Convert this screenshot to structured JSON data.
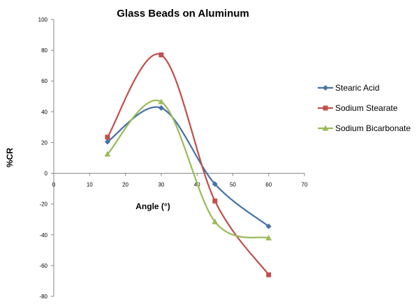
{
  "chart_data": {
    "type": "line",
    "title": "Glass Beads on Aluminum",
    "xlabel": "Angle (°)",
    "ylabel": "%CR",
    "xlim": [
      0,
      70
    ],
    "ylim": [
      -80,
      100
    ],
    "xticks": [
      0,
      10,
      20,
      30,
      40,
      50,
      60,
      70
    ],
    "yticks": [
      -80,
      -60,
      -40,
      -20,
      0,
      20,
      40,
      60,
      80,
      100
    ],
    "grid": false,
    "legend_position": "right",
    "smooth": true,
    "x": [
      15,
      30,
      45,
      60
    ],
    "series": [
      {
        "name": "Stearic Acid",
        "values": [
          20.5,
          42.5,
          -7,
          -34.5
        ],
        "color": "#4572A7",
        "marker": "diamond"
      },
      {
        "name": "Sodium Stearate",
        "values": [
          23.5,
          77,
          -18,
          -66
        ],
        "color": "#C0504D",
        "marker": "square"
      },
      {
        "name": "Sodium Bicarbonate",
        "values": [
          12.5,
          46.5,
          -31.5,
          -42
        ],
        "color": "#9BBB59",
        "marker": "triangle"
      }
    ]
  }
}
